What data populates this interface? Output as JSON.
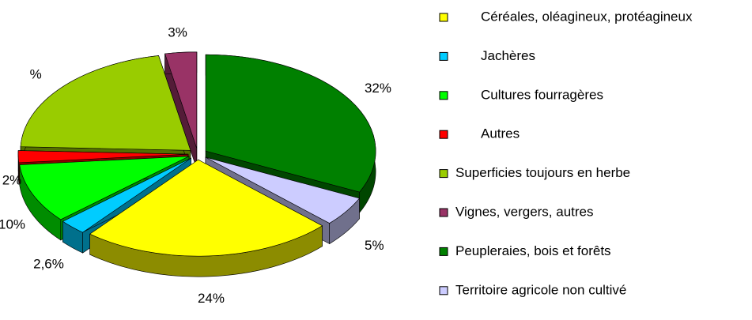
{
  "chart_data": {
    "type": "pie",
    "categories": [
      "Céréales, oléagineux, protéagineux",
      "Jachères",
      "Cultures fourragères",
      "Autres",
      "Superficies toujours en herbe",
      "Vignes, vergers, autres",
      "Peupleraies, bois et forêts",
      "Territoire agricole non cultivé"
    ],
    "values": [
      24,
      2.6,
      10,
      2,
      21.4,
      3,
      32,
      5
    ],
    "value_labels": [
      "24%",
      "2,6%",
      "10%",
      "2%",
      "%",
      "3%",
      "32%",
      "5%"
    ],
    "colors": [
      "#ffff00",
      "#00ccff",
      "#00ff00",
      "#ff0000",
      "#99cc00",
      "#993366",
      "#008000",
      "#ccccff"
    ],
    "legend": "right",
    "exploded": true,
    "three_d": true
  }
}
